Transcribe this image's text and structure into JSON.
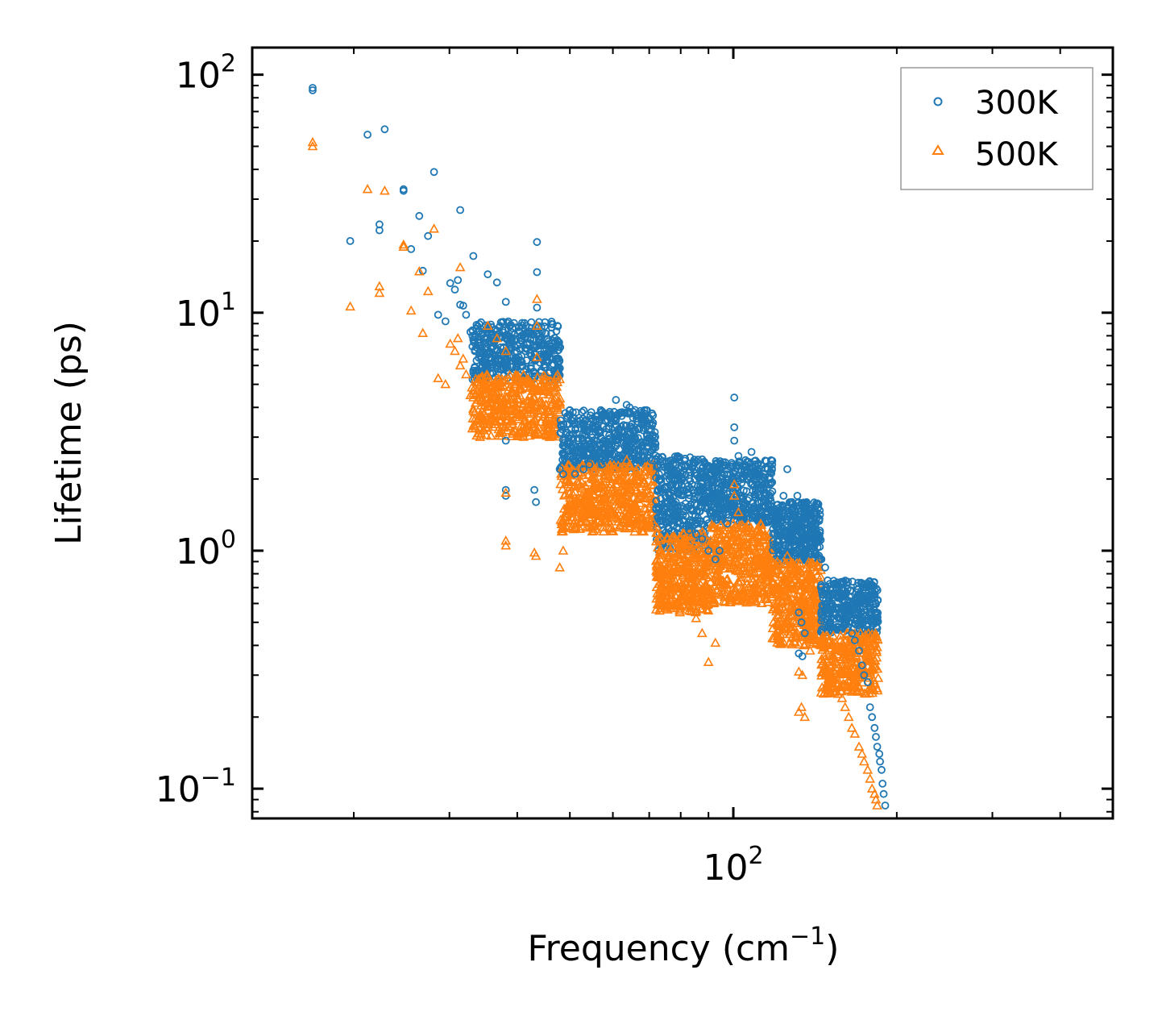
{
  "chart_data": {
    "type": "scatter",
    "xscale": "log",
    "yscale": "log",
    "xlabel": "Frequency (cm",
    "xlabel_sup": "−1",
    "xlabel_end": ")",
    "ylabel": "Lifetime (ps)",
    "xlim": [
      13,
      500
    ],
    "ylim": [
      0.075,
      130
    ],
    "xticks": [
      {
        "base": "10",
        "exp": "2",
        "value": 100
      }
    ],
    "yticks": [
      {
        "base": "10",
        "exp": "−1",
        "value": 0.1
      },
      {
        "base": "10",
        "exp": "0",
        "value": 1
      },
      {
        "base": "10",
        "exp": "1",
        "value": 10
      },
      {
        "base": "10",
        "exp": "2",
        "value": 100
      }
    ],
    "legend_position": "top-right",
    "series": [
      {
        "name": "300K",
        "color": "#1f77b4",
        "marker": "circle",
        "points": [
          [
            16.8,
            86
          ],
          [
            16.8,
            88
          ],
          [
            19.7,
            20
          ],
          [
            21.2,
            56
          ],
          [
            22.3,
            23.5
          ],
          [
            22.3,
            22.2
          ],
          [
            22.8,
            59
          ],
          [
            24.7,
            33
          ],
          [
            24.7,
            32.5
          ],
          [
            25.5,
            18.5
          ],
          [
            26.4,
            25.5
          ],
          [
            26.8,
            15
          ],
          [
            27.4,
            21
          ],
          [
            28.1,
            39
          ],
          [
            28.6,
            9.8
          ],
          [
            29.5,
            9.2
          ],
          [
            30.1,
            13.3
          ],
          [
            30.7,
            12.5
          ],
          [
            31.1,
            13.7
          ],
          [
            31.4,
            27
          ],
          [
            31.4,
            10.8
          ],
          [
            31.8,
            10.7
          ],
          [
            32.2,
            9.8
          ],
          [
            32.8,
            8.3
          ],
          [
            33.2,
            17.3
          ],
          [
            33.9,
            7.7
          ],
          [
            35.3,
            14.5
          ],
          [
            36.7,
            13.4
          ],
          [
            38.1,
            11.1
          ],
          [
            40.1,
            7.3
          ],
          [
            41.6,
            6.3
          ],
          [
            43.5,
            19.8
          ],
          [
            43.5,
            14.8
          ],
          [
            43.5,
            10.5
          ],
          [
            45.1,
            5.9
          ],
          [
            45.9,
            5.6
          ],
          [
            38.1,
            2.9
          ],
          [
            38.1,
            1.8
          ],
          [
            38.1,
            1.7
          ],
          [
            43.0,
            1.8
          ],
          [
            43.3,
            1.6
          ],
          [
            47.9,
            2.2
          ],
          [
            48.6,
            2.1
          ],
          [
            51.1,
            2.1
          ],
          [
            53.0,
            2.2
          ],
          [
            54.3,
            2.3
          ],
          [
            56.1,
            2.5
          ],
          [
            57.2,
            2.3
          ],
          [
            58.7,
            2.85
          ],
          [
            60.8,
            4.3
          ],
          [
            61.6,
            3.2
          ],
          [
            63.6,
            4.1
          ],
          [
            64.4,
            4.0
          ],
          [
            65.9,
            3.9
          ],
          [
            67.8,
            3.6
          ],
          [
            69.0,
            2.85
          ],
          [
            70.7,
            2.4
          ],
          [
            72.3,
            2.25
          ],
          [
            73.4,
            2.0
          ],
          [
            74.9,
            1.7
          ],
          [
            76.3,
            1.65
          ],
          [
            78.0,
            1.55
          ],
          [
            80.8,
            1.35
          ],
          [
            82.9,
            1.22
          ],
          [
            85.4,
            1.17
          ],
          [
            87.6,
            1.12
          ],
          [
            90.0,
            1.0
          ],
          [
            92.7,
            0.92
          ],
          [
            94.3,
            1.0
          ],
          [
            97.5,
            1.3
          ],
          [
            99.2,
            1.5
          ],
          [
            100.4,
            2.9
          ],
          [
            100.4,
            3.3
          ],
          [
            100.4,
            4.4
          ],
          [
            102.2,
            2.5
          ],
          [
            103.9,
            2.0
          ],
          [
            105.3,
            2.4
          ],
          [
            108.0,
            2.6
          ],
          [
            111.3,
            1.9
          ],
          [
            113.8,
            1.8
          ],
          [
            116.7,
            2.0
          ],
          [
            119.1,
            1.5
          ],
          [
            121.4,
            1.45
          ],
          [
            123.7,
            1.7
          ],
          [
            125.7,
            2.2
          ],
          [
            128.2,
            1.6
          ],
          [
            131.2,
            1.7
          ],
          [
            134.9,
            1.3
          ],
          [
            138.5,
            1.25
          ],
          [
            141.1,
            1.05
          ],
          [
            145.3,
            0.92
          ],
          [
            147.6,
            0.85
          ],
          [
            149.2,
            0.75
          ],
          [
            153.0,
            0.72
          ],
          [
            155.8,
            0.65
          ],
          [
            158.6,
            0.62
          ],
          [
            160.6,
            0.58
          ],
          [
            163.1,
            0.5
          ],
          [
            165.3,
            0.45
          ],
          [
            167.4,
            0.42
          ],
          [
            170.4,
            0.38
          ],
          [
            172.6,
            0.33
          ],
          [
            174.1,
            0.3
          ],
          [
            176.8,
            0.28
          ],
          [
            178.6,
            0.22
          ],
          [
            180.1,
            0.2
          ],
          [
            182.0,
            0.18
          ],
          [
            183.1,
            0.165
          ],
          [
            184.1,
            0.15
          ],
          [
            185.7,
            0.14
          ],
          [
            186.3,
            0.13
          ],
          [
            187.5,
            0.12
          ],
          [
            188.3,
            0.105
          ],
          [
            189.2,
            0.095
          ],
          [
            190.4,
            0.085
          ],
          [
            132.0,
            0.55
          ],
          [
            133.5,
            0.5
          ],
          [
            135.4,
            0.45
          ],
          [
            132.0,
            0.37
          ],
          [
            134.0,
            0.36
          ],
          [
            148.5,
            0.65
          ],
          [
            150.8,
            0.6
          ]
        ]
      },
      {
        "name": "500K",
        "color": "#ff7f0e",
        "marker": "triangle",
        "points": [
          [
            16.8,
            50
          ],
          [
            16.8,
            52
          ],
          [
            19.7,
            10.6
          ],
          [
            21.2,
            33
          ],
          [
            22.3,
            12.9
          ],
          [
            22.3,
            12.1
          ],
          [
            22.8,
            32.5
          ],
          [
            24.7,
            19.3
          ],
          [
            24.7,
            18.9
          ],
          [
            25.5,
            10.2
          ],
          [
            26.4,
            14.9
          ],
          [
            26.8,
            8.2
          ],
          [
            27.4,
            12.3
          ],
          [
            28.1,
            22.5
          ],
          [
            28.6,
            5.3
          ],
          [
            29.5,
            5.0
          ],
          [
            30.1,
            7.4
          ],
          [
            30.7,
            6.9
          ],
          [
            31.1,
            7.8
          ],
          [
            31.4,
            15.5
          ],
          [
            31.4,
            6.0
          ],
          [
            31.8,
            6.4
          ],
          [
            32.2,
            5.5
          ],
          [
            32.8,
            4.5
          ],
          [
            33.2,
            4.4
          ],
          [
            33.9,
            4.3
          ],
          [
            35.3,
            8.8
          ],
          [
            36.7,
            7.8
          ],
          [
            38.1,
            6.9
          ],
          [
            40.1,
            4.3
          ],
          [
            41.6,
            3.5
          ],
          [
            43.5,
            11.4
          ],
          [
            43.5,
            8.8
          ],
          [
            43.5,
            6.5
          ],
          [
            45.1,
            3.1
          ],
          [
            45.9,
            3.0
          ],
          [
            38.1,
            1.1
          ],
          [
            38.1,
            1.05
          ],
          [
            38.1,
            1.75
          ],
          [
            43.0,
            0.98
          ],
          [
            43.3,
            0.95
          ],
          [
            47.9,
            0.85
          ],
          [
            48.6,
            1.0
          ],
          [
            51.1,
            1.25
          ],
          [
            53.0,
            1.4
          ],
          [
            54.3,
            1.5
          ],
          [
            56.1,
            1.6
          ],
          [
            57.2,
            1.55
          ],
          [
            58.7,
            1.6
          ],
          [
            60.8,
            1.9
          ],
          [
            61.6,
            1.75
          ],
          [
            63.6,
            2.4
          ],
          [
            64.4,
            2.3
          ],
          [
            65.9,
            1.95
          ],
          [
            67.8,
            1.7
          ],
          [
            69.0,
            1.5
          ],
          [
            70.7,
            1.35
          ],
          [
            72.3,
            1.25
          ],
          [
            73.4,
            0.92
          ],
          [
            74.9,
            0.82
          ],
          [
            76.3,
            0.75
          ],
          [
            78.0,
            0.7
          ],
          [
            80.8,
            0.62
          ],
          [
            82.9,
            0.56
          ],
          [
            85.4,
            0.52
          ],
          [
            87.6,
            0.45
          ],
          [
            90.0,
            0.34
          ],
          [
            92.7,
            0.41
          ],
          [
            94.3,
            0.72
          ],
          [
            97.5,
            0.9
          ],
          [
            99.2,
            1.1
          ],
          [
            100.4,
            1.7
          ],
          [
            100.4,
            1.9
          ],
          [
            102.2,
            1.45
          ],
          [
            103.9,
            0.98
          ],
          [
            105.3,
            1.25
          ],
          [
            108.0,
            1.2
          ],
          [
            111.3,
            0.88
          ],
          [
            113.8,
            0.68
          ],
          [
            116.7,
            0.72
          ],
          [
            119.1,
            0.6
          ],
          [
            121.4,
            0.58
          ],
          [
            123.7,
            0.65
          ],
          [
            125.7,
            0.95
          ],
          [
            128.2,
            0.8
          ],
          [
            131.2,
            0.45
          ],
          [
            134.9,
            0.4
          ],
          [
            138.5,
            0.38
          ],
          [
            141.1,
            0.42
          ],
          [
            145.3,
            0.35
          ],
          [
            147.6,
            0.3
          ],
          [
            149.2,
            0.28
          ],
          [
            153.0,
            0.27
          ],
          [
            155.8,
            0.25
          ],
          [
            158.6,
            0.24
          ],
          [
            160.6,
            0.22
          ],
          [
            163.1,
            0.2
          ],
          [
            165.3,
            0.18
          ],
          [
            167.4,
            0.17
          ],
          [
            170.4,
            0.15
          ],
          [
            172.6,
            0.14
          ],
          [
            174.1,
            0.13
          ],
          [
            176.8,
            0.12
          ],
          [
            178.6,
            0.11
          ],
          [
            180.1,
            0.1
          ],
          [
            182.0,
            0.095
          ],
          [
            183.1,
            0.09
          ],
          [
            184.1,
            0.085
          ],
          [
            132.0,
            0.31
          ],
          [
            133.5,
            0.22
          ],
          [
            135.4,
            0.2
          ],
          [
            132.0,
            0.21
          ],
          [
            134.0,
            0.3
          ],
          [
            148.5,
            0.3
          ],
          [
            150.8,
            0.27
          ]
        ]
      }
    ],
    "bands": [
      {
        "series": 0,
        "xmin": 33,
        "xmax": 48,
        "ymin": 5.2,
        "ymax": 9.2,
        "n": 420,
        "seed": 11
      },
      {
        "series": 1,
        "xmin": 33,
        "xmax": 48,
        "ymin": 3.0,
        "ymax": 5.5,
        "n": 420,
        "seed": 12
      },
      {
        "series": 0,
        "xmin": 48,
        "xmax": 72,
        "ymin": 2.2,
        "ymax": 3.9,
        "n": 500,
        "seed": 13
      },
      {
        "series": 1,
        "xmin": 48,
        "xmax": 72,
        "ymin": 1.2,
        "ymax": 2.3,
        "n": 500,
        "seed": 14
      },
      {
        "series": 0,
        "xmin": 72,
        "xmax": 90,
        "ymin": 1.0,
        "ymax": 2.5,
        "n": 380,
        "seed": 15
      },
      {
        "series": 1,
        "xmin": 72,
        "xmax": 90,
        "ymin": 0.55,
        "ymax": 1.2,
        "n": 380,
        "seed": 16
      },
      {
        "series": 0,
        "xmin": 90,
        "xmax": 118,
        "ymin": 1.3,
        "ymax": 2.4,
        "n": 400,
        "seed": 17
      },
      {
        "series": 1,
        "xmin": 90,
        "xmax": 118,
        "ymin": 0.6,
        "ymax": 1.3,
        "n": 400,
        "seed": 18
      },
      {
        "series": 0,
        "xmin": 118,
        "xmax": 145,
        "ymin": 0.9,
        "ymax": 1.6,
        "n": 360,
        "seed": 19
      },
      {
        "series": 1,
        "xmin": 118,
        "xmax": 145,
        "ymin": 0.4,
        "ymax": 0.9,
        "n": 360,
        "seed": 20
      },
      {
        "series": 0,
        "xmin": 145,
        "xmax": 185,
        "ymin": 0.45,
        "ymax": 0.75,
        "n": 320,
        "seed": 21
      },
      {
        "series": 1,
        "xmin": 145,
        "xmax": 185,
        "ymin": 0.25,
        "ymax": 0.45,
        "n": 320,
        "seed": 22
      }
    ]
  }
}
